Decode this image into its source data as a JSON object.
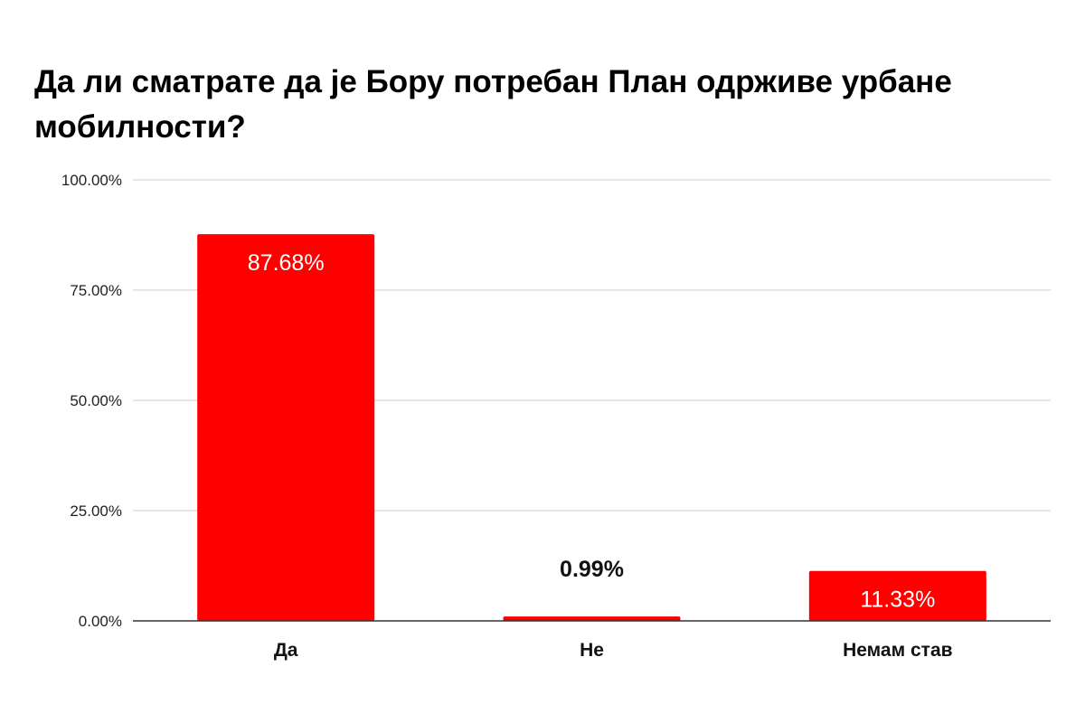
{
  "chart_data": {
    "type": "bar",
    "title": "Да ли сматрате да је Бору потребан План одрживе урбане мобилности?",
    "categories": [
      "Да",
      "Не",
      "Немам став"
    ],
    "values": [
      87.68,
      0.99,
      11.33
    ],
    "data_labels": [
      "87.68%",
      "0.99%",
      "11.33%"
    ],
    "ylim": [
      0,
      100
    ],
    "yticks": [
      0,
      25,
      50,
      75,
      100
    ],
    "ytick_labels": [
      "0.00%",
      "25.00%",
      "50.00%",
      "75.00%",
      "100.00%"
    ],
    "xlabel": "",
    "ylabel": "",
    "grid": true,
    "legend": "none",
    "colors": {
      "bar": "#ff0000",
      "label_inside": "#ffffff",
      "label_outside": "#111111",
      "grid": "#cccccc",
      "axis": "#333333"
    }
  }
}
